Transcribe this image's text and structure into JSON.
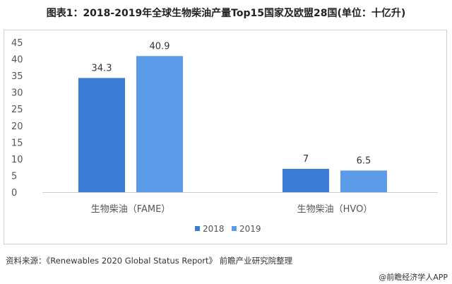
{
  "title": "图表1：2018-2019年全球生物柴油产量Top15国家及欧盟28国(单位：十亿升)",
  "chart_data": {
    "type": "bar",
    "title": "图表1：2018-2019年全球生物柴油产量Top15国家及欧盟28国(单位：十亿升)",
    "categories": [
      "生物柴油（FAME）",
      "生物柴油（HVO）"
    ],
    "series": [
      {
        "name": "2018",
        "color": "#3a7bd5",
        "values": [
          34.3,
          7
        ]
      },
      {
        "name": "2019",
        "color": "#5b9be8",
        "values": [
          40.9,
          6.5
        ]
      }
    ],
    "data_labels": [
      [
        "34.3",
        "7"
      ],
      [
        "40.9",
        "6.5"
      ]
    ],
    "ylim": [
      0,
      45
    ],
    "yticks": [
      0,
      5,
      10,
      15,
      20,
      25,
      30,
      35,
      40,
      45
    ],
    "grid": false,
    "legend": "bottom"
  },
  "source": "资料来源：《Renewables 2020 Global Status Report》 前瞻产业研究院整理",
  "credit": "@前瞻经济学人APP"
}
